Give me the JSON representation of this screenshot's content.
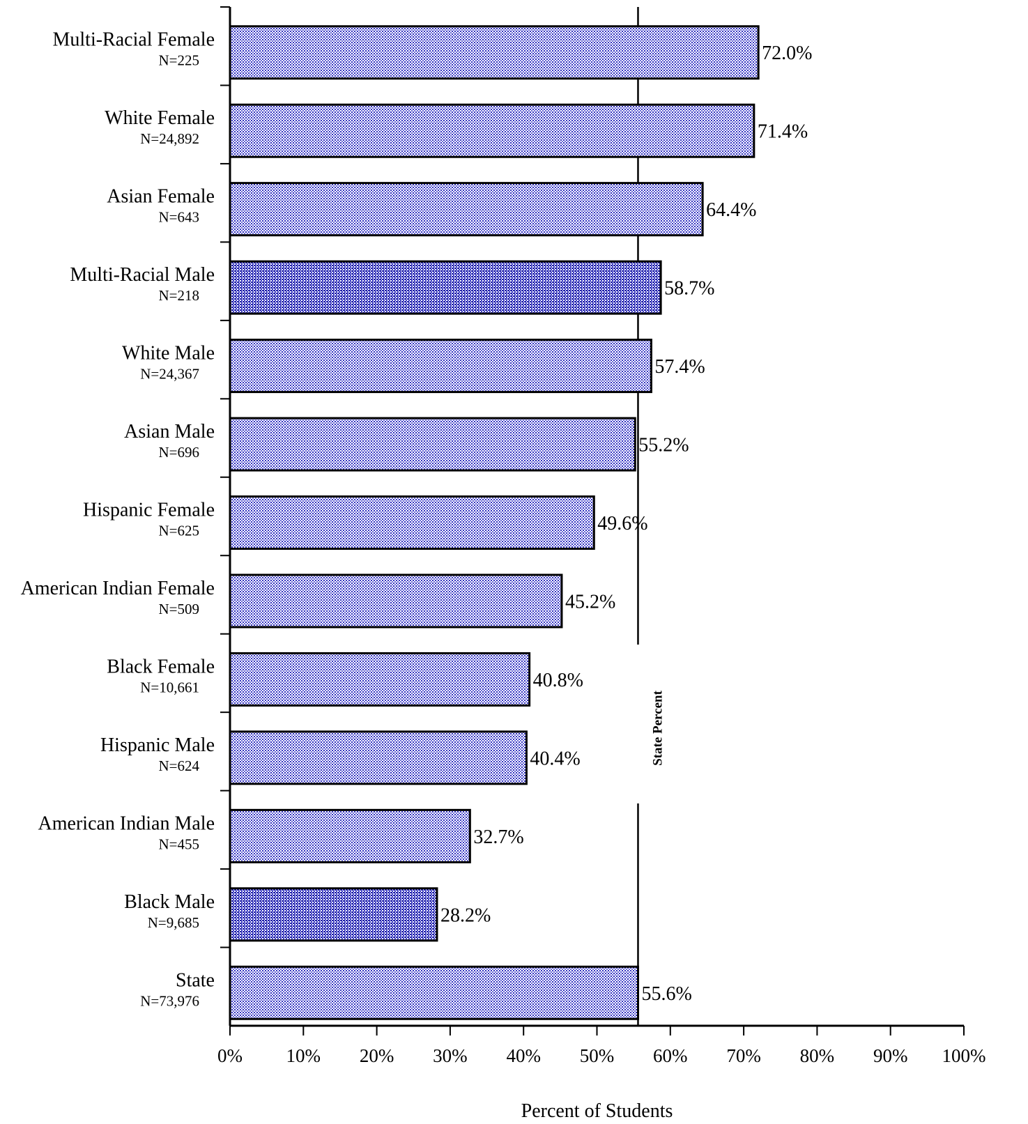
{
  "chart_data": {
    "type": "bar",
    "orientation": "horizontal",
    "categories": [
      "Multi-Racial Female",
      "White Female",
      "Asian Female",
      "Multi-Racial Male",
      "White Male",
      "Asian Male",
      "Hispanic Female",
      "American Indian Female",
      "Black Female",
      "Hispanic Male",
      "American Indian Male",
      "Black Male",
      "State"
    ],
    "counts": [
      "N=225",
      "N=24,892",
      "N=643",
      "N=218",
      "N=24,367",
      "N=696",
      "N=625",
      "N=509",
      "N=10,661",
      "N=624",
      "N=455",
      "N=9,685",
      "N=73,976"
    ],
    "values": [
      72.0,
      71.4,
      64.4,
      58.7,
      57.4,
      55.2,
      49.6,
      45.2,
      40.8,
      40.4,
      32.7,
      28.2,
      55.6
    ],
    "value_labels": [
      "72.0%",
      "71.4%",
      "64.4%",
      "58.7%",
      "57.4%",
      "55.2%",
      "49.6%",
      "45.2%",
      "40.8%",
      "40.4%",
      "32.7%",
      "28.2%",
      "55.6%"
    ],
    "xlim": [
      0,
      100
    ],
    "xticks": [
      0,
      10,
      20,
      30,
      40,
      50,
      60,
      70,
      80,
      90,
      100
    ],
    "xtick_labels": [
      "0%",
      "10%",
      "20%",
      "30%",
      "40%",
      "50%",
      "60%",
      "70%",
      "80%",
      "90%",
      "100%"
    ],
    "xlabel": "Percent of Students",
    "title": "",
    "reference_line": {
      "value": 55.6,
      "label": "State Percent"
    },
    "colors": {
      "bar_fill": "#8a8ae6",
      "bar_dots": "#1a1ab4",
      "bar_bg": "#ffffff",
      "outline": "#000000"
    }
  }
}
